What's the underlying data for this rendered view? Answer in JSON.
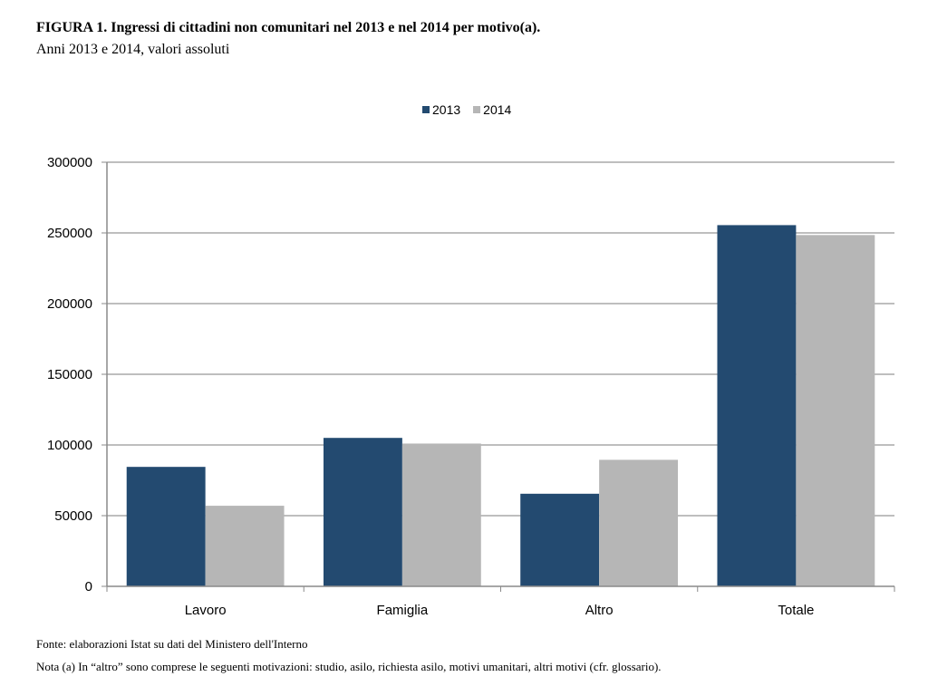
{
  "figure": {
    "title": "FIGURA 1. Ingressi di cittadini non comunitari nel 2013 e nel 2014 per motivo(a).",
    "subtitle": "Anni 2013 e 2014, valori assoluti"
  },
  "footer": {
    "fonte": "Fonte: elaborazioni Istat su dati del Ministero dell'Interno",
    "nota": "Nota (a) In “altro” sono comprese le seguenti motivazioni: studio, asilo, richiesta asilo, motivi umanitari, altri motivi (cfr. glossario)."
  },
  "colors": {
    "series_2013": "#234a70",
    "series_2014": "#b6b6b6",
    "grid": "#a8a8a8",
    "axis": "#8a8a8a"
  },
  "chart_data": {
    "type": "bar",
    "title": "",
    "xlabel": "",
    "ylabel": "",
    "categories": [
      "Lavoro",
      "Famiglia",
      "Altro",
      "Totale"
    ],
    "series": [
      {
        "name": "2013",
        "values": [
          84500,
          105000,
          65500,
          255500
        ]
      },
      {
        "name": "2014",
        "values": [
          57000,
          101000,
          89500,
          248500
        ]
      }
    ],
    "ylim": [
      0,
      300000
    ],
    "yticks": [
      0,
      50000,
      100000,
      150000,
      200000,
      250000,
      300000
    ],
    "ytick_labels": [
      "0",
      "50000",
      "100000",
      "150000",
      "200000",
      "250000",
      "300000"
    ],
    "grid": true,
    "legend_position": "top-center"
  }
}
